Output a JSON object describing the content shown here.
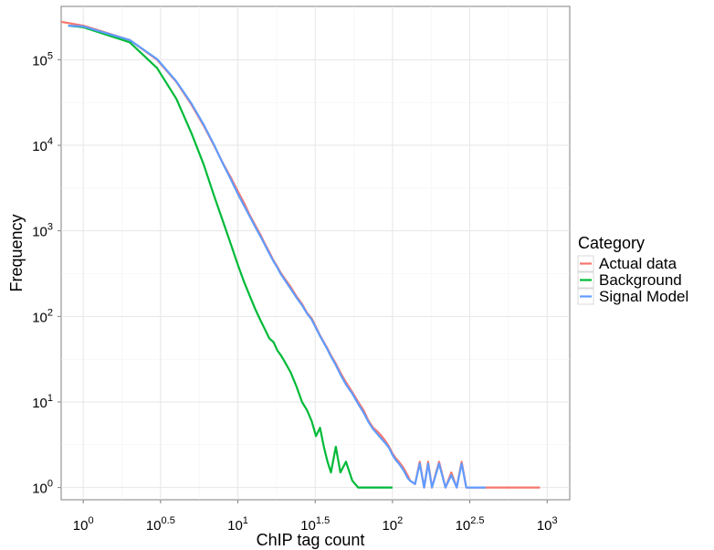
{
  "chart_data": {
    "type": "line",
    "title": "",
    "xlabel": "ChIP tag count",
    "ylabel": "Frequency",
    "x_scale": "log10",
    "y_scale": "log10",
    "xlim": [
      0.72,
      1400
    ],
    "ylim": [
      0.72,
      420000
    ],
    "grid": true,
    "legend_position": "right",
    "legend_title": "Category",
    "x_ticks": [
      {
        "base": "10",
        "exp": "0",
        "value": 1
      },
      {
        "base": "10",
        "exp": "0.5",
        "value": 3.162
      },
      {
        "base": "10",
        "exp": "1",
        "value": 10
      },
      {
        "base": "10",
        "exp": "1.5",
        "value": 31.62
      },
      {
        "base": "10",
        "exp": "2",
        "value": 100
      },
      {
        "base": "10",
        "exp": "2.5",
        "value": 316.2
      },
      {
        "base": "10",
        "exp": "3",
        "value": 1000
      }
    ],
    "y_ticks": [
      {
        "base": "10",
        "exp": "0",
        "value": 1
      },
      {
        "base": "10",
        "exp": "1",
        "value": 10
      },
      {
        "base": "10",
        "exp": "2",
        "value": 100
      },
      {
        "base": "10",
        "exp": "3",
        "value": 1000
      },
      {
        "base": "10",
        "exp": "4",
        "value": 10000
      },
      {
        "base": "10",
        "exp": "5",
        "value": 100000
      }
    ],
    "series": [
      {
        "name": "Actual data",
        "color": "#F8766D",
        "x": [
          0.7,
          1,
          2,
          3,
          4,
          5,
          6,
          7,
          8,
          9,
          10,
          11,
          12,
          13,
          14,
          15,
          16,
          17,
          18,
          19,
          20,
          22,
          24,
          26,
          28,
          30,
          32,
          34,
          36,
          38,
          40,
          43,
          46,
          50,
          55,
          60,
          65,
          70,
          75,
          80,
          85,
          90,
          95,
          100,
          105,
          110,
          115,
          120,
          125,
          130,
          140,
          150,
          160,
          170,
          180,
          200,
          220,
          240,
          260,
          280,
          300,
          330,
          360,
          400,
          450,
          500,
          600,
          700,
          900
        ],
        "y": [
          280000,
          250000,
          170000,
          100000,
          55000,
          30000,
          17000,
          10000,
          6200,
          4200,
          2900,
          2100,
          1500,
          1150,
          900,
          700,
          560,
          450,
          380,
          320,
          280,
          220,
          170,
          140,
          110,
          95,
          75,
          60,
          50,
          42,
          35,
          28,
          22,
          17,
          13,
          10,
          8,
          6,
          5,
          4.5,
          4,
          3.5,
          3,
          2.5,
          2.2,
          2,
          1.8,
          1.6,
          1.4,
          1.2,
          1.1,
          2,
          1,
          2,
          1,
          2,
          1,
          1.5,
          1,
          2,
          1,
          1,
          1,
          1,
          1,
          1,
          1,
          1,
          1
        ]
      },
      {
        "name": "Background",
        "color": "#00BA38",
        "x": [
          0.8,
          1,
          2,
          3,
          4,
          5,
          6,
          7,
          8,
          9,
          10,
          11,
          12,
          13,
          14,
          15,
          16,
          17,
          18,
          19,
          20,
          22,
          24,
          26,
          28,
          30,
          32,
          34,
          36,
          38,
          40,
          43,
          46,
          50,
          55,
          60,
          70,
          80,
          90,
          100
        ],
        "y": [
          250000,
          240000,
          160000,
          80000,
          35000,
          14000,
          6000,
          2600,
          1300,
          700,
          400,
          250,
          170,
          120,
          90,
          70,
          55,
          50,
          40,
          35,
          30,
          22,
          15,
          10,
          8,
          6,
          4,
          5,
          3,
          2,
          1.5,
          3,
          1.5,
          2,
          1.2,
          1,
          1,
          1,
          1,
          1
        ]
      },
      {
        "name": "Signal Model",
        "color": "#619CFF",
        "x": [
          0.8,
          1,
          2,
          3,
          4,
          5,
          6,
          7,
          8,
          9,
          10,
          11,
          12,
          13,
          14,
          15,
          16,
          17,
          18,
          19,
          20,
          22,
          24,
          26,
          28,
          30,
          32,
          34,
          36,
          38,
          40,
          43,
          46,
          50,
          55,
          60,
          65,
          70,
          75,
          80,
          85,
          90,
          95,
          100,
          105,
          110,
          115,
          120,
          125,
          130,
          140,
          150,
          160,
          170,
          180,
          200,
          220,
          240,
          260,
          280,
          300,
          330,
          360,
          400
        ],
        "y": [
          250000,
          245000,
          170000,
          102000,
          56000,
          31000,
          17500,
          10200,
          6100,
          4000,
          2700,
          1950,
          1450,
          1100,
          860,
          680,
          540,
          440,
          370,
          310,
          270,
          210,
          165,
          135,
          108,
          92,
          73,
          59,
          49,
          41,
          34,
          27,
          21,
          16,
          12.5,
          9.5,
          7.5,
          5.8,
          4.8,
          4.2,
          3.7,
          3.3,
          2.9,
          2.4,
          2.1,
          1.9,
          1.7,
          1.5,
          1.3,
          1.2,
          1.1,
          1.9,
          1,
          1.9,
          1,
          1.9,
          1,
          1.4,
          1,
          1.9,
          1,
          1,
          1,
          1
        ]
      }
    ]
  }
}
